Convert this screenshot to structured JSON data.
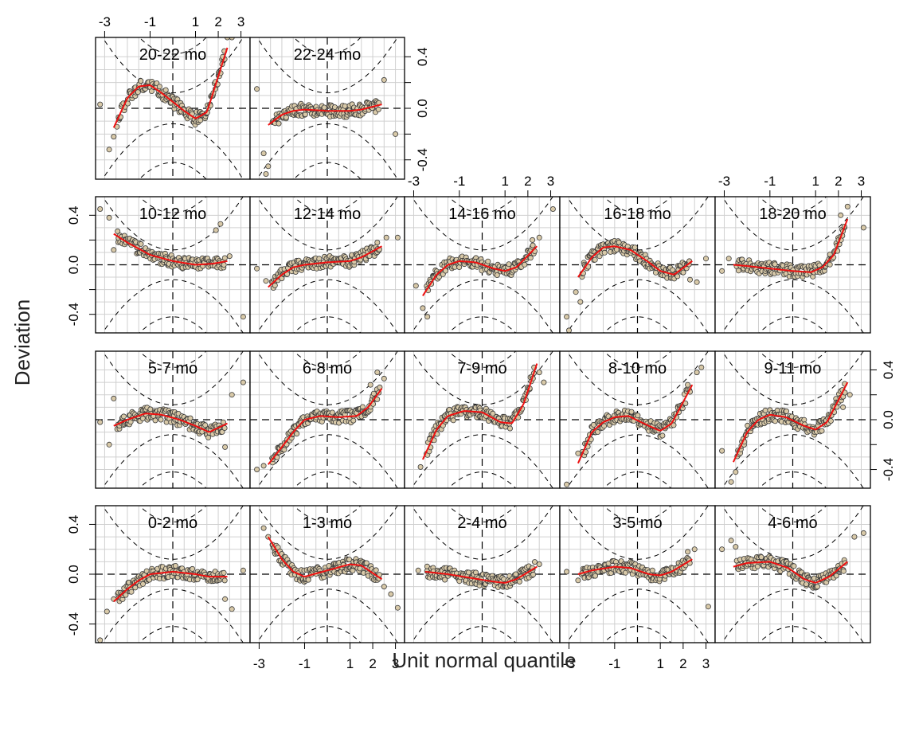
{
  "chart_data": {
    "type": "scatter",
    "xlabel": "Unit normal quantile",
    "ylabel": "Deviation",
    "xlim": [
      -3.4,
      3.4
    ],
    "ylim": [
      -0.55,
      0.55
    ],
    "x_ticks": [
      -3,
      -1,
      1,
      2,
      3
    ],
    "x_tick_labels": [
      "-3",
      "-1",
      "1",
      "2",
      "3"
    ],
    "y_ticks": [
      -0.4,
      0.0,
      0.4
    ],
    "y_tick_labels": [
      "-0.4",
      "0.0",
      "0.4"
    ],
    "grid": true,
    "series_colors": {
      "points_fill": "#d8c9a8",
      "points_stroke": "#3a3a3a",
      "smooth": "#ee1111",
      "reference": "#000000",
      "grid": "#d0d0d0"
    },
    "panels": [
      {
        "label": "0-2 mo",
        "row": 0,
        "col": 0,
        "smooth": [
          [
            -2.6,
            -0.22
          ],
          [
            -2,
            -0.12
          ],
          [
            -1.5,
            -0.05
          ],
          [
            -1,
            0.0
          ],
          [
            0,
            0.02
          ],
          [
            1,
            0.0
          ],
          [
            1.6,
            -0.02
          ],
          [
            2.4,
            -0.02
          ]
        ],
        "extremes": [
          [
            -3.2,
            -0.53
          ],
          [
            -2.9,
            -0.3
          ],
          [
            -2.6,
            -0.2
          ],
          [
            2.3,
            -0.2
          ],
          [
            2.6,
            -0.28
          ],
          [
            3.1,
            0.03
          ]
        ]
      },
      {
        "label": "1-3 mo",
        "row": 0,
        "col": 1,
        "smooth": [
          [
            -2.6,
            0.3
          ],
          [
            -2,
            0.12
          ],
          [
            -1.5,
            0.02
          ],
          [
            -1,
            -0.02
          ],
          [
            0,
            0.03
          ],
          [
            1,
            0.08
          ],
          [
            1.5,
            0.07
          ],
          [
            2.4,
            -0.04
          ]
        ],
        "extremes": [
          [
            -2.8,
            0.37
          ],
          [
            -2.6,
            0.3
          ],
          [
            2.5,
            -0.1
          ],
          [
            2.8,
            -0.16
          ],
          [
            3.1,
            -0.27
          ]
        ]
      },
      {
        "label": "2-4 mo",
        "row": 0,
        "col": 2,
        "smooth": [
          [
            -2.5,
            0.02
          ],
          [
            -1.5,
            0.0
          ],
          [
            -0.5,
            -0.03
          ],
          [
            0.5,
            -0.06
          ],
          [
            1,
            -0.07
          ],
          [
            1.5,
            -0.04
          ],
          [
            2.4,
            0.06
          ]
        ],
        "extremes": [
          [
            -2.8,
            0.03
          ],
          [
            2.2,
            0.05
          ],
          [
            2.5,
            0.08
          ]
        ]
      },
      {
        "label": "3-5 mo",
        "row": 0,
        "col": 3,
        "smooth": [
          [
            -2.6,
            0.0
          ],
          [
            -2,
            0.03
          ],
          [
            -1,
            0.06
          ],
          [
            -0.3,
            0.05
          ],
          [
            0.5,
            0.0
          ],
          [
            1,
            -0.01
          ],
          [
            1.5,
            0.02
          ],
          [
            2.4,
            0.12
          ]
        ],
        "extremes": [
          [
            -3.1,
            0.02
          ],
          [
            -2.6,
            -0.05
          ],
          [
            2.2,
            0.18
          ],
          [
            2.5,
            0.2
          ],
          [
            3.1,
            -0.26
          ]
        ]
      },
      {
        "label": "4-6 mo",
        "row": 0,
        "col": 4,
        "smooth": [
          [
            -2.6,
            0.06
          ],
          [
            -2,
            0.09
          ],
          [
            -1,
            0.1
          ],
          [
            -0.2,
            0.05
          ],
          [
            0.5,
            -0.04
          ],
          [
            1,
            -0.07
          ],
          [
            1.6,
            -0.02
          ],
          [
            2.4,
            0.1
          ]
        ],
        "extremes": [
          [
            -3.1,
            0.2
          ],
          [
            -2.7,
            0.27
          ],
          [
            -2.5,
            0.22
          ],
          [
            2.7,
            0.3
          ],
          [
            3.1,
            0.33
          ]
        ]
      },
      {
        "label": "5-7 mo",
        "row": 1,
        "col": 0,
        "smooth": [
          [
            -2.6,
            -0.05
          ],
          [
            -2,
            0.0
          ],
          [
            -1.2,
            0.05
          ],
          [
            -0.5,
            0.04
          ],
          [
            0.3,
            0.0
          ],
          [
            1,
            -0.05
          ],
          [
            1.6,
            -0.1
          ],
          [
            2.4,
            -0.03
          ]
        ],
        "extremes": [
          [
            -3.2,
            -0.02
          ],
          [
            -2.8,
            -0.2
          ],
          [
            -2.6,
            0.17
          ],
          [
            2.3,
            -0.22
          ],
          [
            2.6,
            0.2
          ],
          [
            3.1,
            0.3
          ]
        ]
      },
      {
        "label": "6-8 mo",
        "row": 1,
        "col": 1,
        "smooth": [
          [
            -2.6,
            -0.36
          ],
          [
            -2,
            -0.22
          ],
          [
            -1.5,
            -0.1
          ],
          [
            -1,
            0.0
          ],
          [
            -0.3,
            0.03
          ],
          [
            0.5,
            0.02
          ],
          [
            1.3,
            0.03
          ],
          [
            1.8,
            0.1
          ],
          [
            2.4,
            0.25
          ]
        ],
        "extremes": [
          [
            -3.1,
            -0.4
          ],
          [
            -2.8,
            -0.37
          ],
          [
            1.9,
            0.28
          ],
          [
            2.2,
            0.38
          ],
          [
            2.5,
            0.33
          ]
        ]
      },
      {
        "label": "7-9 mo",
        "row": 1,
        "col": 2,
        "smooth": [
          [
            -2.6,
            -0.32
          ],
          [
            -2,
            -0.08
          ],
          [
            -1.5,
            0.03
          ],
          [
            -0.8,
            0.07
          ],
          [
            0,
            0.06
          ],
          [
            0.8,
            -0.02
          ],
          [
            1.3,
            -0.03
          ],
          [
            1.8,
            0.12
          ],
          [
            2.4,
            0.45
          ]
        ],
        "extremes": [
          [
            -2.9,
            -0.58
          ],
          [
            -2.7,
            -0.38
          ],
          [
            2.5,
            0.38
          ],
          [
            2.7,
            0.3
          ]
        ]
      },
      {
        "label": "8-10 mo",
        "row": 1,
        "col": 3,
        "smooth": [
          [
            -2.6,
            -0.35
          ],
          [
            -2,
            -0.1
          ],
          [
            -1.5,
            -0.02
          ],
          [
            -1,
            0.02
          ],
          [
            -0.4,
            0.03
          ],
          [
            0.5,
            -0.05
          ],
          [
            1,
            -0.09
          ],
          [
            1.5,
            -0.03
          ],
          [
            2.4,
            0.28
          ]
        ],
        "extremes": [
          [
            -3.1,
            -0.52
          ],
          [
            -2.8,
            -0.57
          ],
          [
            -2.6,
            -0.27
          ],
          [
            2.2,
            0.28
          ],
          [
            2.6,
            0.38
          ],
          [
            2.8,
            0.42
          ]
        ]
      },
      {
        "label": "9-11 mo",
        "row": 1,
        "col": 4,
        "smooth": [
          [
            -2.6,
            -0.34
          ],
          [
            -2,
            -0.1
          ],
          [
            -1.5,
            0.0
          ],
          [
            -1,
            0.04
          ],
          [
            -0.3,
            0.02
          ],
          [
            0.5,
            -0.05
          ],
          [
            1,
            -0.08
          ],
          [
            1.5,
            -0.02
          ],
          [
            2.4,
            0.3
          ]
        ],
        "extremes": [
          [
            -3.1,
            -0.25
          ],
          [
            -2.7,
            -0.5
          ],
          [
            -2.5,
            -0.42
          ],
          [
            2.2,
            0.1
          ],
          [
            2.5,
            0.2
          ]
        ]
      },
      {
        "label": "10-12 mo",
        "row": 2,
        "col": 0,
        "smooth": [
          [
            -2.6,
            0.25
          ],
          [
            -2,
            0.18
          ],
          [
            -1.5,
            0.13
          ],
          [
            -1,
            0.08
          ],
          [
            0,
            0.03
          ],
          [
            1,
            0.0
          ],
          [
            1.8,
            0.01
          ],
          [
            2.4,
            0.03
          ]
        ],
        "extremes": [
          [
            -3.2,
            0.45
          ],
          [
            -2.8,
            0.38
          ],
          [
            -2.6,
            0.12
          ],
          [
            1.9,
            0.28
          ],
          [
            2.1,
            0.33
          ],
          [
            2.5,
            0.07
          ],
          [
            3.1,
            -0.42
          ]
        ]
      },
      {
        "label": "12-14 mo",
        "row": 2,
        "col": 1,
        "smooth": [
          [
            -2.6,
            -0.18
          ],
          [
            -2,
            -0.08
          ],
          [
            -1.5,
            -0.02
          ],
          [
            -1,
            0.0
          ],
          [
            0,
            0.02
          ],
          [
            1,
            0.03
          ],
          [
            1.5,
            0.06
          ],
          [
            2.4,
            0.15
          ]
        ],
        "extremes": [
          [
            -3.1,
            -0.03
          ],
          [
            -2.7,
            -0.13
          ],
          [
            2.2,
            0.18
          ],
          [
            2.6,
            0.22
          ],
          [
            3.1,
            0.22
          ]
        ]
      },
      {
        "label": "14-16 mo",
        "row": 2,
        "col": 2,
        "smooth": [
          [
            -2.6,
            -0.25
          ],
          [
            -2,
            -0.08
          ],
          [
            -1.5,
            0.0
          ],
          [
            -1,
            0.03
          ],
          [
            -0.3,
            0.02
          ],
          [
            0.5,
            -0.03
          ],
          [
            1,
            -0.05
          ],
          [
            1.5,
            -0.02
          ],
          [
            2.4,
            0.15
          ]
        ],
        "extremes": [
          [
            -2.9,
            -0.17
          ],
          [
            -2.6,
            -0.35
          ],
          [
            -2.4,
            -0.42
          ],
          [
            2.2,
            0.2
          ],
          [
            2.5,
            0.22
          ],
          [
            3.1,
            0.45
          ]
        ]
      },
      {
        "label": "16-18 mo",
        "row": 2,
        "col": 3,
        "smooth": [
          [
            -2.6,
            -0.1
          ],
          [
            -2,
            0.06
          ],
          [
            -1.5,
            0.14
          ],
          [
            -1,
            0.15
          ],
          [
            -0.3,
            0.12
          ],
          [
            0.5,
            0.02
          ],
          [
            1,
            -0.05
          ],
          [
            1.6,
            -0.08
          ],
          [
            2.4,
            0.03
          ]
        ],
        "extremes": [
          [
            -3.1,
            -0.42
          ],
          [
            -2.7,
            -0.22
          ],
          [
            -2.5,
            -0.3
          ],
          [
            2.3,
            -0.12
          ],
          [
            2.6,
            -0.14
          ],
          [
            3.0,
            0.05
          ],
          [
            -3.0,
            -0.53
          ]
        ]
      },
      {
        "label": "18-20 mo",
        "row": 2,
        "col": 4,
        "smooth": [
          [
            -2.6,
            0.0
          ],
          [
            -2,
            -0.01
          ],
          [
            -1,
            -0.03
          ],
          [
            0,
            -0.05
          ],
          [
            0.8,
            -0.06
          ],
          [
            1.3,
            -0.02
          ],
          [
            1.8,
            0.08
          ],
          [
            2.4,
            0.37
          ]
        ],
        "extremes": [
          [
            -3.1,
            -0.05
          ],
          [
            -2.8,
            0.05
          ],
          [
            2.1,
            0.4
          ],
          [
            2.4,
            0.47
          ],
          [
            3.1,
            0.3
          ]
        ]
      },
      {
        "label": "20-22 mo",
        "row": 3,
        "col": 0,
        "smooth": [
          [
            -2.6,
            -0.15
          ],
          [
            -2,
            0.08
          ],
          [
            -1.5,
            0.17
          ],
          [
            -1,
            0.18
          ],
          [
            -0.5,
            0.12
          ],
          [
            0.5,
            -0.02
          ],
          [
            1,
            -0.08
          ],
          [
            1.5,
            -0.03
          ],
          [
            2.4,
            0.47
          ]
        ],
        "extremes": [
          [
            -3.2,
            0.03
          ],
          [
            -2.8,
            -0.32
          ],
          [
            -2.6,
            -0.22
          ],
          [
            2.2,
            0.4
          ],
          [
            2.4,
            0.55
          ],
          [
            2.6,
            0.55
          ]
        ]
      },
      {
        "label": "22-24 mo",
        "row": 3,
        "col": 1,
        "smooth": [
          [
            -2.6,
            -0.13
          ],
          [
            -2,
            -0.05
          ],
          [
            -1.5,
            -0.02
          ],
          [
            -1,
            -0.01
          ],
          [
            0,
            -0.02
          ],
          [
            1,
            -0.02
          ],
          [
            1.5,
            -0.01
          ],
          [
            2.4,
            0.03
          ]
        ],
        "extremes": [
          [
            -3.1,
            0.15
          ],
          [
            -2.8,
            -0.35
          ],
          [
            -2.6,
            -0.45
          ],
          [
            -2.7,
            -0.51
          ],
          [
            2.5,
            0.22
          ],
          [
            3.0,
            -0.2
          ]
        ]
      }
    ]
  }
}
